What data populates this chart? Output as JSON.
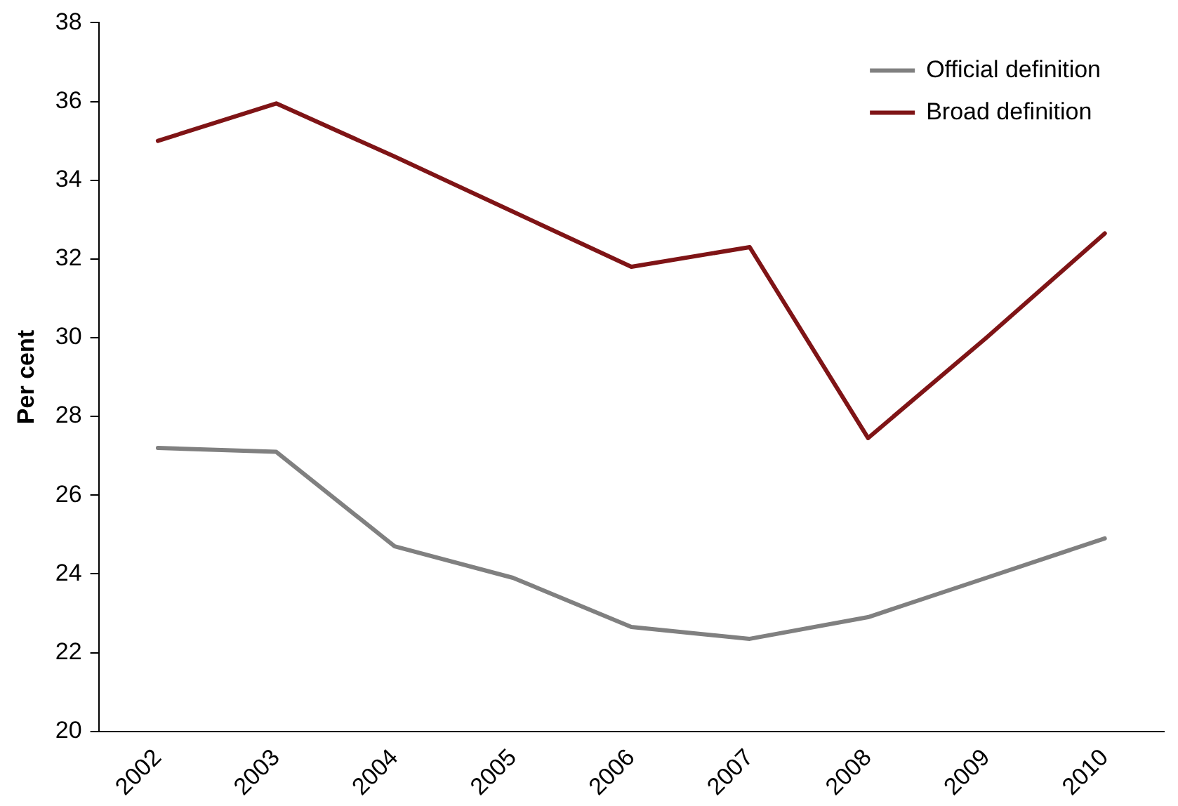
{
  "chart_data": {
    "type": "line",
    "ylabel": "Per cent",
    "categories": [
      "2002",
      "2003",
      "2004",
      "2005",
      "2006",
      "2007",
      "2008",
      "2009",
      "2010"
    ],
    "series": [
      {
        "name": "Official definition",
        "color": "#808080",
        "values": [
          27.2,
          27.1,
          24.7,
          23.9,
          22.65,
          22.35,
          22.9,
          23.9,
          24.9
        ]
      },
      {
        "name": "Broad definition",
        "color": "#7f1416",
        "values": [
          35.0,
          35.95,
          34.6,
          33.2,
          31.8,
          32.3,
          27.45,
          30.0,
          32.65
        ]
      }
    ],
    "ylim": [
      20,
      38
    ],
    "yticks": [
      20,
      22,
      24,
      26,
      28,
      30,
      32,
      34,
      36,
      38
    ],
    "grid": false,
    "legend": "top right",
    "marker": "none",
    "line_style": "solid"
  }
}
